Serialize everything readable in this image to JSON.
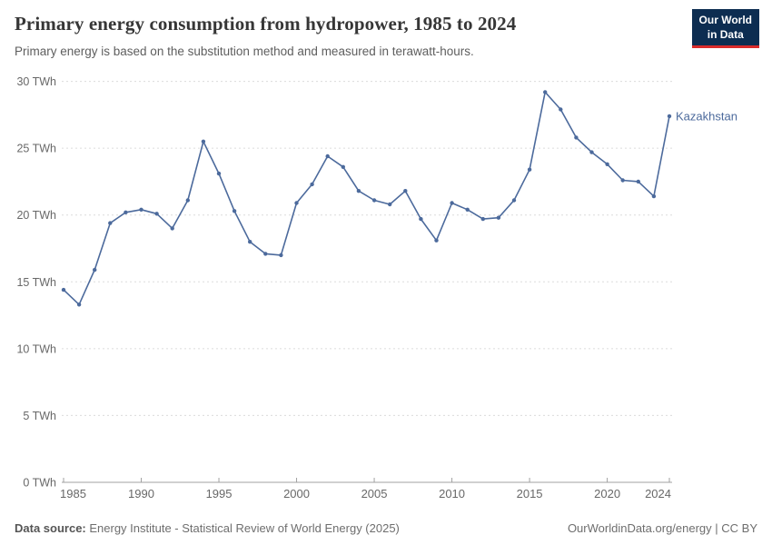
{
  "header": {
    "title": "Primary energy consumption from hydropower, 1985 to 2024",
    "subtitle": "Primary energy is based on the substitution method and measured in terawatt-hours."
  },
  "logo": {
    "line1": "Our World",
    "line2": "in Data",
    "bg_color": "#0d2d51",
    "accent_color": "#d92b2b"
  },
  "chart_data": {
    "type": "line",
    "title": "Primary energy consumption from hydropower, 1985 to 2024",
    "subtitle": "Primary energy is based on the substitution method and measured in terawatt-hours.",
    "unit": "TWh",
    "xlim": [
      1985,
      2024
    ],
    "ylim": [
      0,
      30
    ],
    "grid": "horizontal-dashed",
    "legend_position": "end-of-line-label",
    "y_ticks": [
      0,
      5,
      10,
      15,
      20,
      25,
      30
    ],
    "y_tick_suffix": " TWh",
    "x_ticks": [
      1985,
      1990,
      1995,
      2000,
      2005,
      2010,
      2015,
      2020,
      2024
    ],
    "x": [
      1985,
      1986,
      1987,
      1988,
      1989,
      1990,
      1991,
      1992,
      1993,
      1994,
      1995,
      1996,
      1997,
      1998,
      1999,
      2000,
      2001,
      2002,
      2003,
      2004,
      2005,
      2006,
      2007,
      2008,
      2009,
      2010,
      2011,
      2012,
      2013,
      2014,
      2015,
      2016,
      2017,
      2018,
      2019,
      2020,
      2021,
      2022,
      2023,
      2024
    ],
    "series": [
      {
        "name": "Kazakhstan",
        "color": "#4C6A9C",
        "values": [
          14.4,
          13.3,
          15.9,
          19.4,
          20.2,
          20.4,
          20.1,
          19.0,
          21.1,
          25.5,
          23.1,
          20.3,
          18.0,
          17.1,
          17.0,
          20.9,
          22.3,
          24.4,
          23.6,
          21.8,
          21.1,
          20.8,
          21.8,
          19.7,
          18.1,
          20.9,
          20.4,
          19.7,
          19.8,
          21.1,
          23.4,
          29.2,
          27.9,
          25.8,
          24.7,
          23.8,
          22.6,
          22.5,
          21.4,
          27.4
        ]
      }
    ]
  },
  "footer": {
    "source_label": "Data source:",
    "source_text": " Energy Institute - Statistical Review of World Energy (2025)",
    "right_text": "OurWorldinData.org/energy | CC BY"
  }
}
